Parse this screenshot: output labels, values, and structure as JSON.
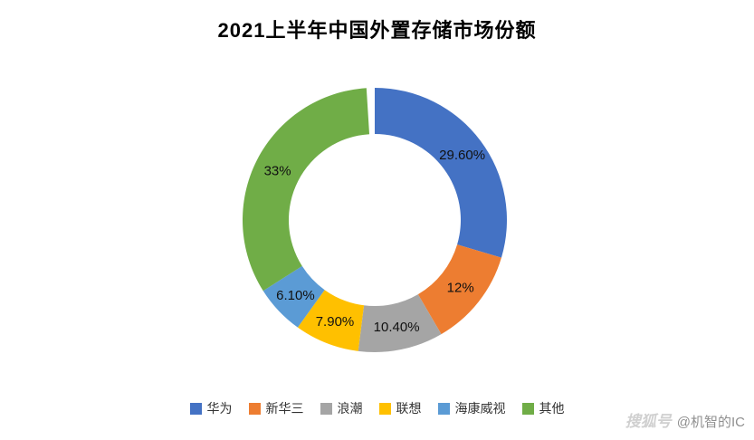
{
  "page": {
    "title": "2021上半年中国外置存储市场份额",
    "watermark_logo": "搜狐号",
    "watermark_handle": "@机智的IC"
  },
  "chart_data": {
    "type": "pie",
    "subtype": "donut",
    "title": "2021上半年中国外置存储市场份额",
    "categories": [
      "华为",
      "新华三",
      "浪潮",
      "联想",
      "海康威视",
      "其他"
    ],
    "values": [
      29.6,
      12,
      10.4,
      7.9,
      6.1,
      33
    ],
    "data_labels": [
      "29.60%",
      "12%",
      "10.40%",
      "7.90%",
      "6.10%",
      "33%"
    ],
    "colors": [
      "#4472C4",
      "#ED7D31",
      "#A5A5A5",
      "#FFC000",
      "#5B9BD5",
      "#70AD47"
    ],
    "total": 100,
    "start_angle_deg": 0,
    "direction": "clockwise",
    "legend_position": "bottom",
    "donut_hole_ratio": 0.65
  }
}
